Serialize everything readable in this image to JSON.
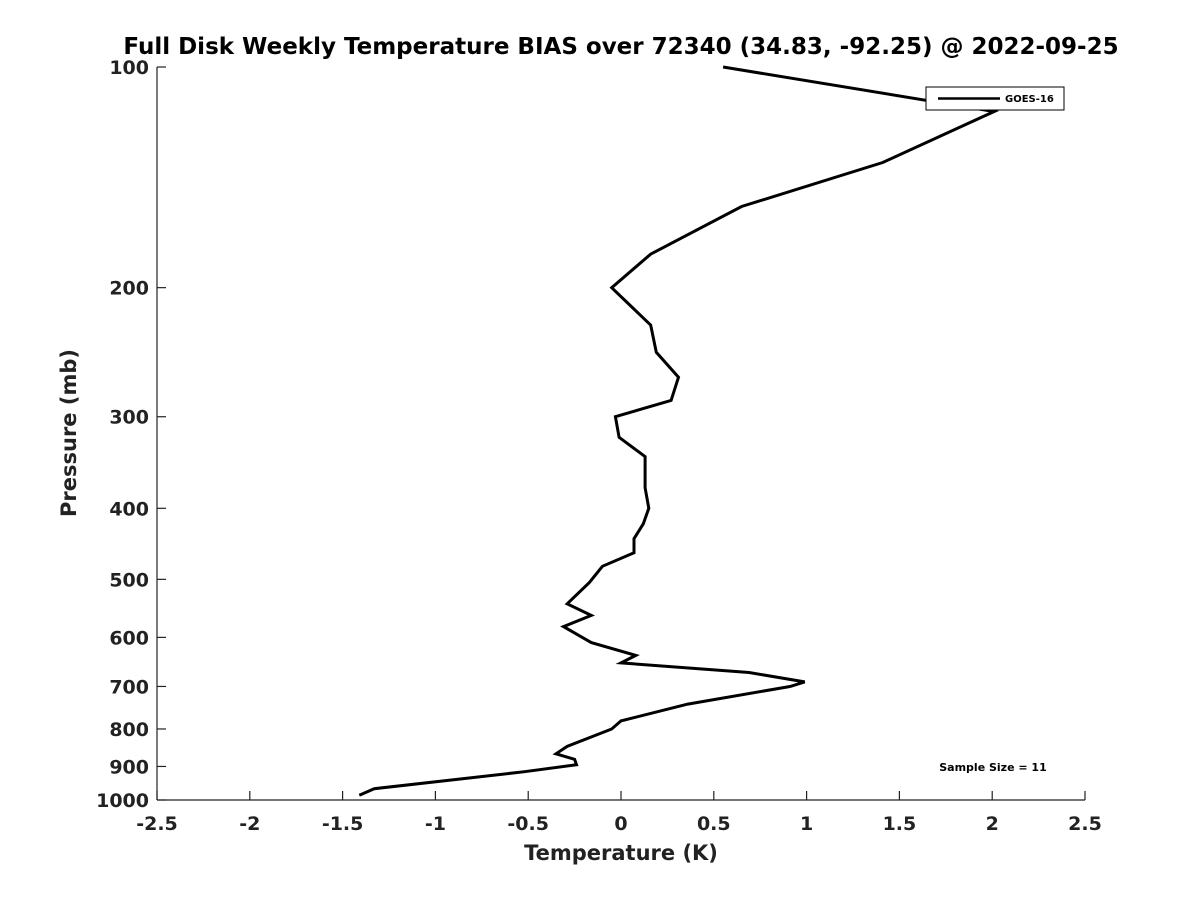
{
  "chart_data": {
    "type": "line",
    "title": "Full Disk Weekly Temperature BIAS over 72340 (34.83, -92.25) @ 2022-09-25",
    "xlabel": "Temperature (K)",
    "ylabel": "Pressure (mb)",
    "xlim": [
      -2.5,
      2.5
    ],
    "ylim": [
      1000,
      100
    ],
    "y_scale": "log",
    "y_reversed": true,
    "grid": false,
    "legend_position": "top-right",
    "x_ticks": [
      "-2.5",
      "-2",
      "-1.5",
      "-1",
      "-0.5",
      "0",
      "0.5",
      "1",
      "1.5",
      "2",
      "2.5"
    ],
    "y_ticks": [
      "100",
      "200",
      "300",
      "400",
      "500",
      "600",
      "700",
      "800",
      "900",
      "1000"
    ],
    "annotation": "Sample Size = 11",
    "series": [
      {
        "name": "GOES-16",
        "color": "#000000",
        "points": [
          {
            "x": 0.55,
            "p": 100
          },
          {
            "x": 2.01,
            "p": 115
          },
          {
            "x": 1.41,
            "p": 135
          },
          {
            "x": 0.65,
            "p": 155
          },
          {
            "x": 0.16,
            "p": 180
          },
          {
            "x": -0.05,
            "p": 200
          },
          {
            "x": 0.16,
            "p": 225
          },
          {
            "x": 0.19,
            "p": 245
          },
          {
            "x": 0.31,
            "p": 265
          },
          {
            "x": 0.27,
            "p": 285
          },
          {
            "x": -0.03,
            "p": 300
          },
          {
            "x": -0.01,
            "p": 320
          },
          {
            "x": 0.13,
            "p": 340
          },
          {
            "x": 0.13,
            "p": 375
          },
          {
            "x": 0.15,
            "p": 400
          },
          {
            "x": 0.12,
            "p": 420
          },
          {
            "x": 0.07,
            "p": 440
          },
          {
            "x": 0.07,
            "p": 460
          },
          {
            "x": -0.1,
            "p": 480
          },
          {
            "x": -0.17,
            "p": 505
          },
          {
            "x": -0.29,
            "p": 540
          },
          {
            "x": -0.16,
            "p": 560
          },
          {
            "x": -0.31,
            "p": 580
          },
          {
            "x": -0.16,
            "p": 610
          },
          {
            "x": 0.08,
            "p": 635
          },
          {
            "x": 0.0,
            "p": 650
          },
          {
            "x": 0.69,
            "p": 670
          },
          {
            "x": 0.99,
            "p": 690
          },
          {
            "x": 0.91,
            "p": 700
          },
          {
            "x": 0.36,
            "p": 740
          },
          {
            "x": 0.0,
            "p": 780
          },
          {
            "x": -0.05,
            "p": 800
          },
          {
            "x": -0.29,
            "p": 845
          },
          {
            "x": -0.35,
            "p": 865
          },
          {
            "x": -0.25,
            "p": 880
          },
          {
            "x": -0.24,
            "p": 895
          },
          {
            "x": -0.52,
            "p": 915
          },
          {
            "x": -1.33,
            "p": 965
          },
          {
            "x": -1.41,
            "p": 985
          }
        ]
      }
    ]
  }
}
